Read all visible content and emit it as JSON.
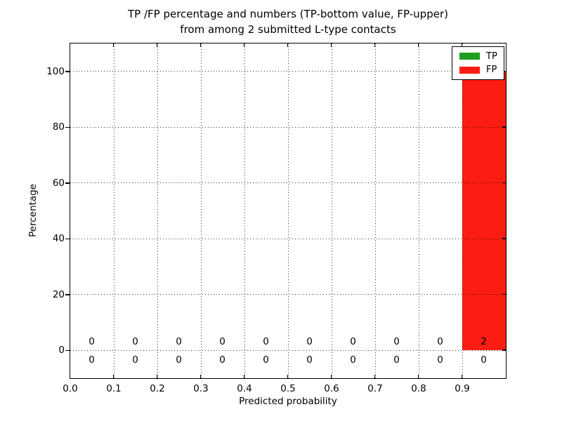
{
  "figure": {
    "background": "#ffffff"
  },
  "chart_data": {
    "type": "bar",
    "stacked": true,
    "title_line1": "TP /FP percentage and numbers (TP-bottom value, FP-upper)",
    "title_line2": "from among 2 submitted L-type contacts",
    "xlabel": "Predicted probability",
    "ylabel": "Percentage",
    "xlim": [
      0.0,
      1.0
    ],
    "ylim": [
      -10,
      110
    ],
    "x_ticks": [
      0.0,
      0.1,
      0.2,
      0.3,
      0.4,
      0.5,
      0.6,
      0.7,
      0.8,
      0.9
    ],
    "x_tick_labels": [
      "0.0",
      "0.1",
      "0.2",
      "0.3",
      "0.4",
      "0.5",
      "0.6",
      "0.7",
      "0.8",
      "0.9"
    ],
    "y_ticks": [
      0,
      20,
      40,
      60,
      80,
      100
    ],
    "y_tick_labels": [
      "0",
      "20",
      "40",
      "60",
      "80",
      "100"
    ],
    "bin_edges": [
      0.0,
      0.1,
      0.2,
      0.3,
      0.4,
      0.5,
      0.6,
      0.7,
      0.8,
      0.9,
      1.0
    ],
    "bin_centers": [
      0.05,
      0.15,
      0.25,
      0.35,
      0.45,
      0.55,
      0.65,
      0.75,
      0.85,
      0.95
    ],
    "grid": "dotted",
    "legend_position": "upper right",
    "series": [
      {
        "name": "TP",
        "color": "#1f9e1f",
        "count_row": "bottom",
        "percentages": [
          0,
          0,
          0,
          0,
          0,
          0,
          0,
          0,
          0,
          0
        ],
        "counts": [
          "0",
          "0",
          "0",
          "0",
          "0",
          "0",
          "0",
          "0",
          "0",
          "0"
        ]
      },
      {
        "name": "FP",
        "color": "#fb1d12",
        "count_row": "upper",
        "percentages": [
          0,
          0,
          0,
          0,
          0,
          0,
          0,
          0,
          0,
          100
        ],
        "counts": [
          "0",
          "0",
          "0",
          "0",
          "0",
          "0",
          "0",
          "0",
          "0",
          "2"
        ]
      }
    ]
  }
}
